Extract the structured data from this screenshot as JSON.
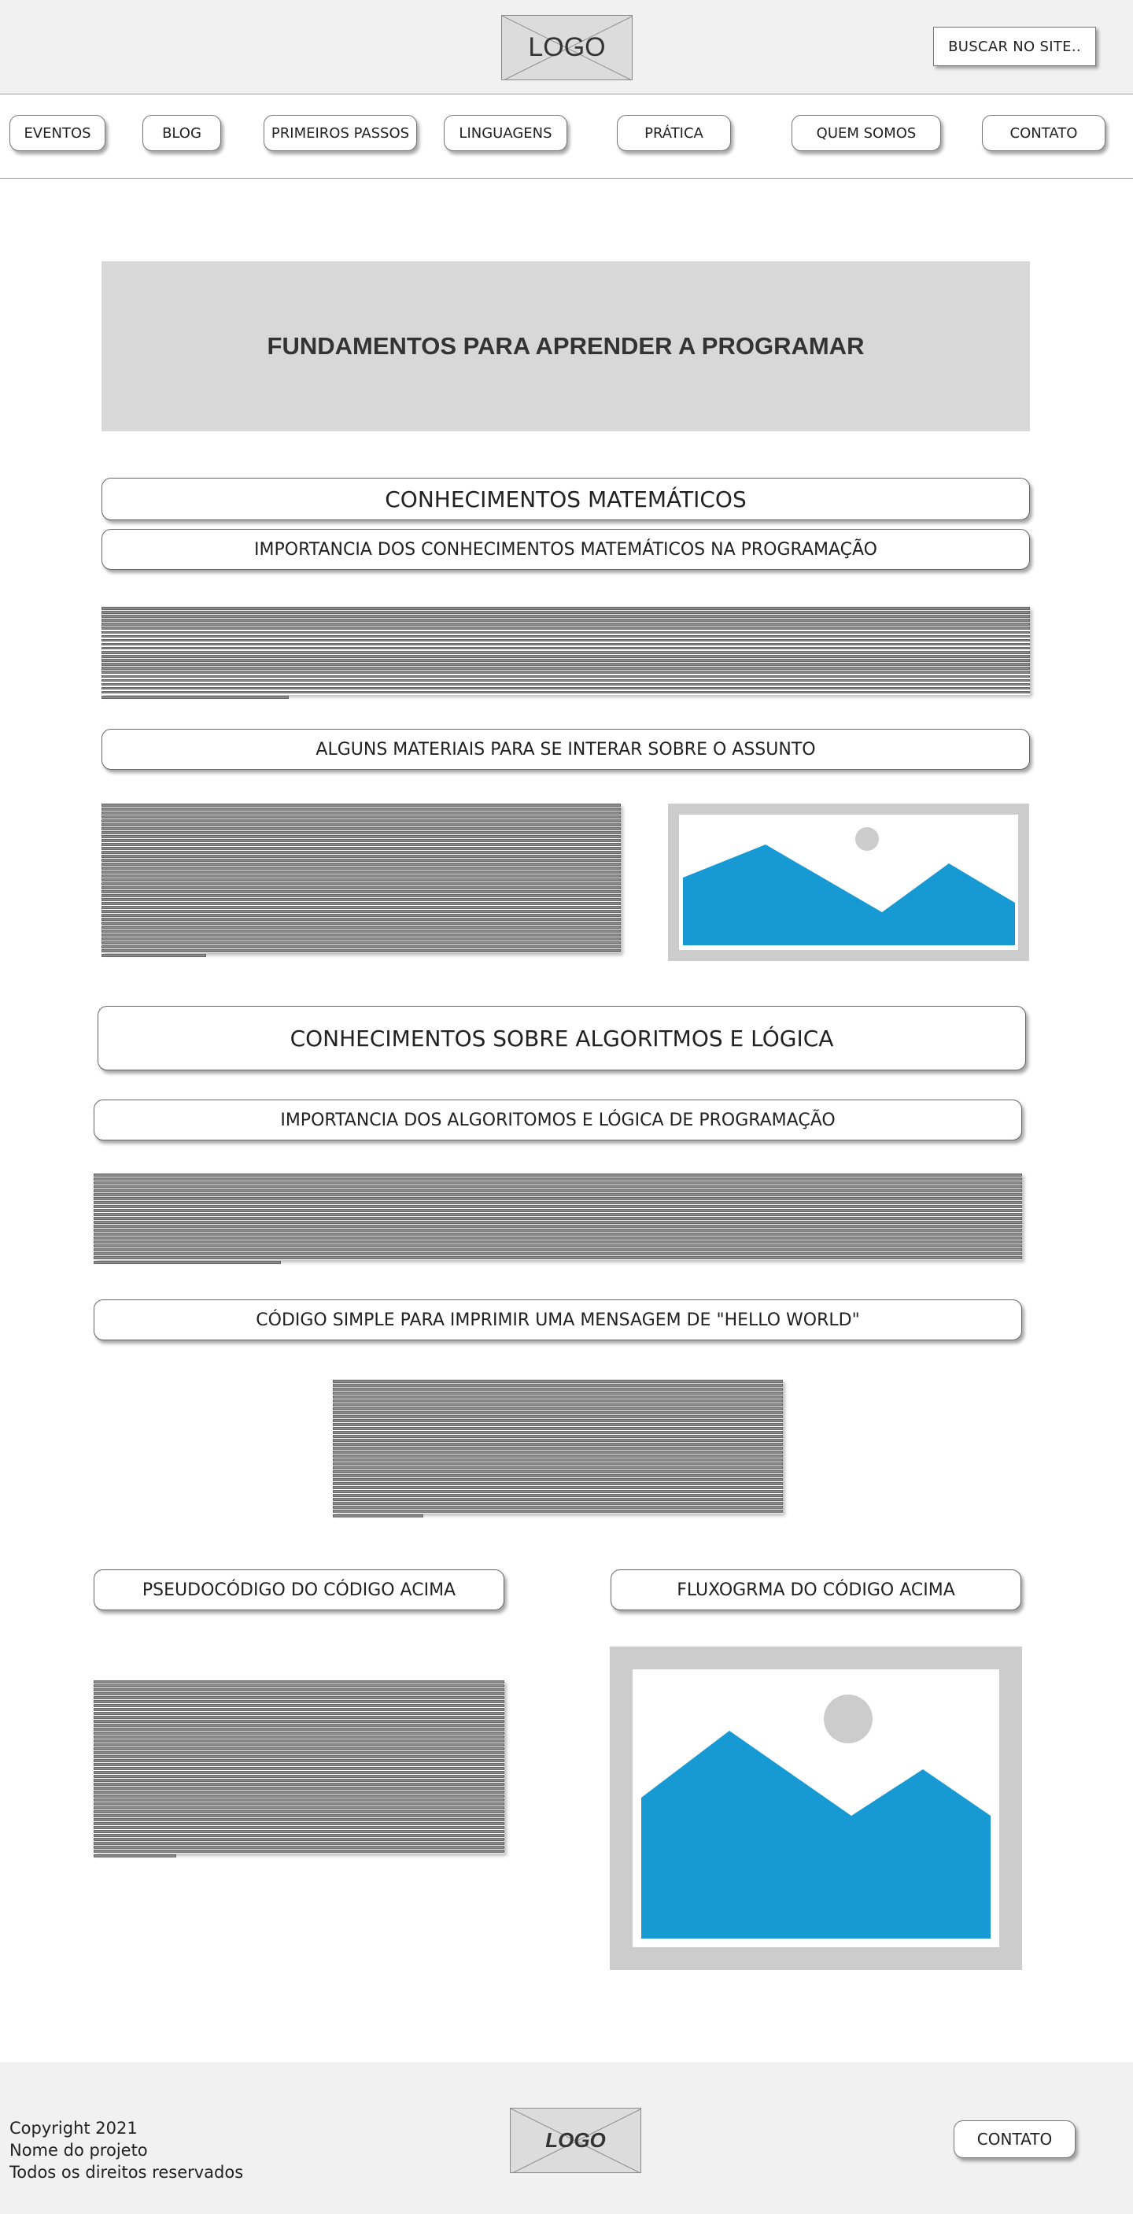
{
  "header": {
    "logo_label": "LOGO",
    "search_label": "BUSCAR NO SITE.."
  },
  "nav": {
    "items": [
      {
        "label": "EVENTOS"
      },
      {
        "label": "BLOG"
      },
      {
        "label": "PRIMEIROS PASSOS"
      },
      {
        "label": "LINGUAGENS"
      },
      {
        "label": "PRÁTICA"
      },
      {
        "label": "QUEM SOMOS"
      },
      {
        "label": "CONTATO"
      }
    ]
  },
  "hero": {
    "title": "FUNDAMENTOS PARA APRENDER A PROGRAMAR"
  },
  "math_section": {
    "title": "CONHECIMENTOS MATEMÁTICOS",
    "subtitle": "IMPORTANCIA DOS CONHECIMENTOS MATEMÁTICOS NA PROGRAMAÇÃO",
    "materials_title": "ALGUNS MATERIAIS PARA SE INTERAR SOBRE O ASSUNTO"
  },
  "algo_section": {
    "title": "CONHECIMENTOS SOBRE ALGORITMOS E LÓGICA",
    "subtitle": "IMPORTANCIA DOS ALGORITOMOS E LÓGICA DE PROGRAMAÇÃO",
    "code_title": "CÓDIGO SIMPLE PARA IMPRIMIR UMA MENSAGEM DE \"HELLO WORLD\"",
    "pseudo_title": "PSEUDOCÓDIGO DO CÓDIGO ACIMA",
    "flow_title": "FLUXOGRMA DO CÓDIGO ACIMA"
  },
  "footer": {
    "copyright_lines": [
      "Copyright 2021",
      "Nome do projeto",
      "Todos os direitos reservados"
    ],
    "logo_label": "LOGO",
    "contact_label": "CONTATO"
  },
  "colors": {
    "image_blue": "#1799d4",
    "image_frame": "#cccccc",
    "line_fill": "#8a8a8a"
  }
}
